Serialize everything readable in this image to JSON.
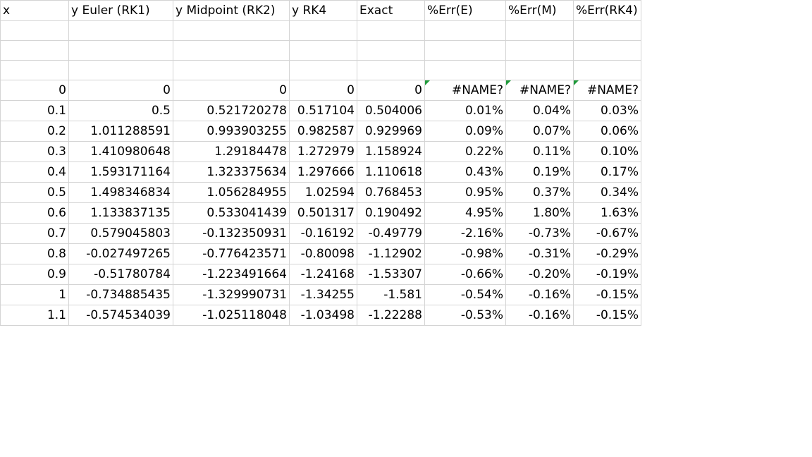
{
  "sheet": {
    "headers": [
      "x",
      "y Euler (RK1)",
      "y Midpoint (RK2)",
      "y RK4",
      "Exact",
      "%Err(E)",
      "%Err(M)",
      "%Err(RK4)"
    ],
    "empty_rows": 3,
    "rows": [
      [
        "0",
        "0",
        "0",
        "0",
        "0",
        "#NAME?",
        "#NAME?",
        "#NAME?"
      ],
      [
        "0.1",
        "0.5",
        "0.521720278",
        "0.517104",
        "0.504006",
        "0.01%",
        "0.04%",
        "0.03%"
      ],
      [
        "0.2",
        "1.011288591",
        "0.993903255",
        "0.982587",
        "0.929969",
        "0.09%",
        "0.07%",
        "0.06%"
      ],
      [
        "0.3",
        "1.410980648",
        "1.29184478",
        "1.272979",
        "1.158924",
        "0.22%",
        "0.11%",
        "0.10%"
      ],
      [
        "0.4",
        "1.593171164",
        "1.323375634",
        "1.297666",
        "1.110618",
        "0.43%",
        "0.19%",
        "0.17%"
      ],
      [
        "0.5",
        "1.498346834",
        "1.056284955",
        "1.02594",
        "0.768453",
        "0.95%",
        "0.37%",
        "0.34%"
      ],
      [
        "0.6",
        "1.133837135",
        "0.533041439",
        "0.501317",
        "0.190492",
        "4.95%",
        "1.80%",
        "1.63%"
      ],
      [
        "0.7",
        "0.579045803",
        "-0.132350931",
        "-0.16192",
        "-0.49779",
        "-2.16%",
        "-0.73%",
        "-0.67%"
      ],
      [
        "0.8",
        "-0.027497265",
        "-0.776423571",
        "-0.80098",
        "-1.12902",
        "-0.98%",
        "-0.31%",
        "-0.29%"
      ],
      [
        "0.9",
        "-0.51780784",
        "-1.223491664",
        "-1.24168",
        "-1.53307",
        "-0.66%",
        "-0.20%",
        "-0.19%"
      ],
      [
        "1",
        "-0.734885435",
        "-1.329990731",
        "-1.34255",
        "-1.581",
        "-0.54%",
        "-0.16%",
        "-0.15%"
      ],
      [
        "1.1",
        "-0.574534039",
        "-1.025118048",
        "-1.03498",
        "-1.22288",
        "-0.53%",
        "-0.16%",
        "-0.15%"
      ]
    ],
    "error_indicator_color": "#1f9a3a",
    "gridline_color": "#d4d4d4"
  }
}
